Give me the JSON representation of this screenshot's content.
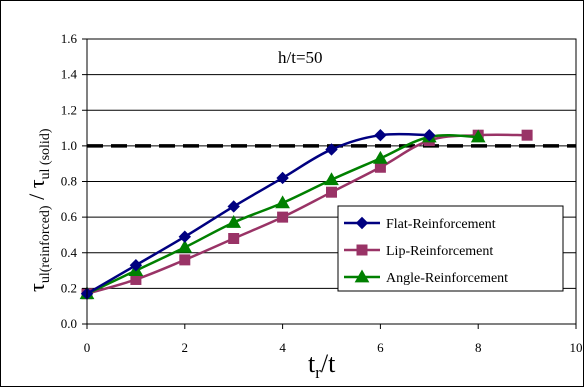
{
  "chart_data": {
    "type": "line",
    "annotation": "h/t=50",
    "xlabel": {
      "main": "t",
      "sub": "r",
      "tail": "/t"
    },
    "ylabel": {
      "num_sym": "τ",
      "num_sub": "ul(reinforced)",
      "slash": " / ",
      "den_sym": "τ",
      "den_sub": "ul (solid)"
    },
    "xlim": [
      0,
      10
    ],
    "ylim": [
      0.0,
      1.6
    ],
    "x_ticks": [
      0,
      2,
      4,
      6,
      8,
      10
    ],
    "x_tick_labels": [
      "0",
      "2",
      "4",
      "6",
      "8",
      "10"
    ],
    "y_ticks": [
      0.0,
      0.2,
      0.4,
      0.6,
      0.8,
      1.0,
      1.2,
      1.4,
      1.6
    ],
    "y_tick_labels": [
      "0.0",
      "0.2",
      "0.4",
      "0.6",
      "0.8",
      "1.0",
      "1.2",
      "1.4",
      "1.6"
    ],
    "grid": "horizontal",
    "reference_line": {
      "y": 1.0,
      "style": "dashed",
      "color": "#000000"
    },
    "legend_position": "bottom-right",
    "series": [
      {
        "name": "Flat-Reinforcement",
        "color": "#000080",
        "marker": "diamond",
        "x": [
          0,
          1,
          2,
          3,
          4,
          5,
          6,
          7
        ],
        "y": [
          0.17,
          0.33,
          0.49,
          0.66,
          0.82,
          0.98,
          1.06,
          1.06
        ]
      },
      {
        "name": "Lip-Reinforcement",
        "color": "#993366",
        "marker": "square",
        "x": [
          0,
          1,
          2,
          3,
          4,
          5,
          6,
          7,
          8,
          9
        ],
        "y": [
          0.17,
          0.25,
          0.36,
          0.48,
          0.6,
          0.74,
          0.88,
          1.03,
          1.06,
          1.06
        ]
      },
      {
        "name": "Angle-Reinforcement",
        "color": "#008000",
        "marker": "triangle",
        "x": [
          0,
          1,
          2,
          3,
          4,
          5,
          6,
          7,
          8
        ],
        "y": [
          0.17,
          0.3,
          0.43,
          0.57,
          0.68,
          0.81,
          0.93,
          1.05,
          1.05
        ]
      }
    ]
  }
}
